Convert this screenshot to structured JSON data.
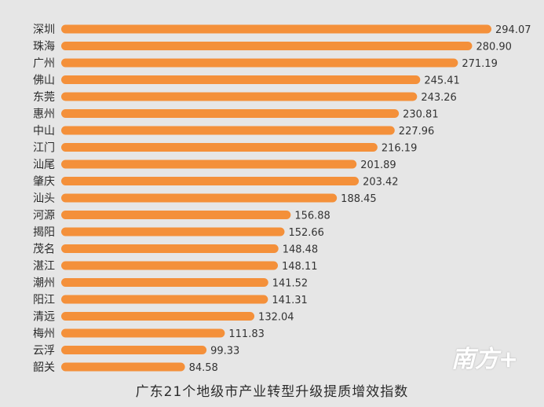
{
  "chart_data": {
    "type": "bar",
    "orientation": "horizontal",
    "title": "广东21个地级市产业转型升级提质增效指数",
    "categories": [
      "深圳",
      "珠海",
      "广州",
      "佛山",
      "东莞",
      "惠州",
      "中山",
      "江门",
      "汕尾",
      "肇庆",
      "汕头",
      "河源",
      "揭阳",
      "茂名",
      "湛江",
      "潮州",
      "阳江",
      "清远",
      "梅州",
      "云浮",
      "韶关"
    ],
    "values": [
      294.07,
      280.9,
      271.19,
      245.41,
      243.26,
      230.81,
      227.96,
      216.19,
      201.89,
      203.42,
      188.45,
      156.88,
      152.66,
      148.48,
      148.11,
      141.52,
      141.31,
      132.04,
      111.83,
      99.33,
      84.58
    ],
    "value_labels": [
      "294.07",
      "280.90",
      "271.19",
      "245.41",
      "243.26",
      "230.81",
      "227.96",
      "216.19",
      "201.89",
      "203.42",
      "188.45",
      "156.88",
      "152.66",
      "148.48",
      "148.11",
      "141.52",
      "141.31",
      "132.04",
      "111.83",
      "99.33",
      "84.58"
    ],
    "xlim": [
      0,
      294.07
    ],
    "grid": false,
    "colors": {
      "bar": "#f4903a",
      "background": "#e6e6e6"
    }
  },
  "logo_text": "南方+"
}
